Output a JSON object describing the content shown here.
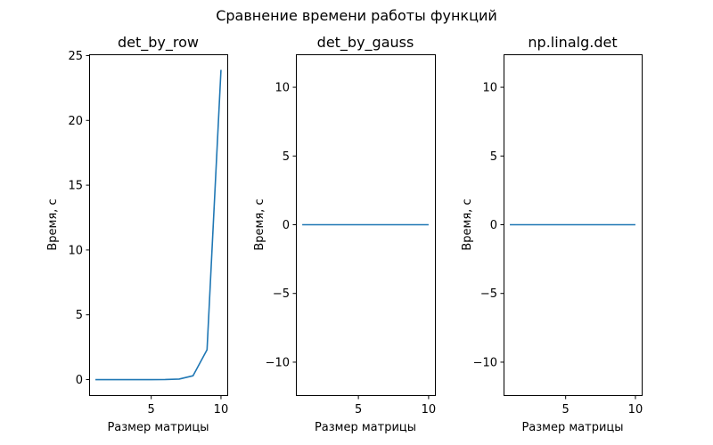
{
  "chart_data": {
    "suptitle": "Сравнение времени работы функций",
    "subplots": [
      {
        "type": "line",
        "title": "det_by_row",
        "xlabel": "Размер матрицы",
        "ylabel": "Время, с",
        "x": [
          1,
          2,
          3,
          4,
          5,
          6,
          7,
          8,
          9,
          10
        ],
        "y": [
          0.0,
          0.0,
          0.0,
          0.0,
          0.0,
          0.005,
          0.04,
          0.3,
          2.3,
          23.9
        ],
        "xlim": [
          0.55,
          10.45
        ],
        "ylim": [
          -1.2,
          25.1
        ],
        "xticks": [
          5,
          10
        ],
        "yticks": [
          0,
          5,
          10,
          15,
          20,
          25
        ],
        "xtick_labels": [
          "5",
          "10"
        ],
        "ytick_labels": [
          "0",
          "5",
          "10",
          "15",
          "20",
          "25"
        ],
        "color": "#1f77b4",
        "grid": false
      },
      {
        "type": "line",
        "title": "det_by_gauss",
        "xlabel": "Размер матрицы",
        "ylabel": "Время, с",
        "x": [
          1,
          2,
          3,
          4,
          5,
          6,
          7,
          8,
          9,
          10
        ],
        "y": [
          0,
          0,
          0,
          0,
          0,
          0,
          0,
          0,
          0,
          0
        ],
        "xlim": [
          0.55,
          10.45
        ],
        "ylim": [
          -12.4,
          12.4
        ],
        "xticks": [
          5,
          10
        ],
        "yticks": [
          -10,
          -5,
          0,
          5,
          10
        ],
        "xtick_labels": [
          "5",
          "10"
        ],
        "ytick_labels": [
          "−10",
          "−5",
          "0",
          "5",
          "10"
        ],
        "color": "#1f77b4",
        "grid": false
      },
      {
        "type": "line",
        "title": "np.linalg.det",
        "xlabel": "Размер матрицы",
        "ylabel": "Время, с",
        "x": [
          1,
          2,
          3,
          4,
          5,
          6,
          7,
          8,
          9,
          10
        ],
        "y": [
          0,
          0,
          0,
          0,
          0,
          0,
          0,
          0,
          0,
          0
        ],
        "xlim": [
          0.55,
          10.45
        ],
        "ylim": [
          -12.4,
          12.4
        ],
        "xticks": [
          5,
          10
        ],
        "yticks": [
          -10,
          -5,
          0,
          5,
          10
        ],
        "xtick_labels": [
          "5",
          "10"
        ],
        "ytick_labels": [
          "−10",
          "−5",
          "0",
          "5",
          "10"
        ],
        "color": "#1f77b4",
        "grid": false
      }
    ]
  }
}
